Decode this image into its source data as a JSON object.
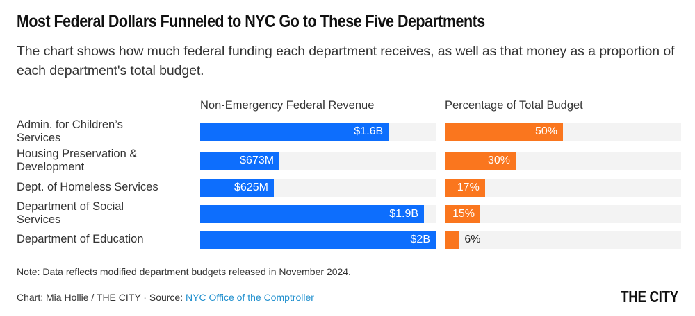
{
  "chart_data": {
    "type": "bar",
    "orientation": "horizontal",
    "title": "Most Federal Dollars Funneled to NYC Go to These Five Departments",
    "subtitle": "The chart shows how much federal funding each department receives, as well as that money as a proportion of each department's total budget.",
    "categories": [
      "Admin. for Children’s Services",
      "Housing Preservation & Development",
      "Dept. of Homeless Services",
      "Department of Social Services",
      "Department of Education"
    ],
    "series": [
      {
        "name": "Non-Emergency Federal Revenue",
        "unit": "USD billions",
        "values": [
          1.6,
          0.673,
          0.625,
          1.9,
          2.0
        ],
        "labels": [
          "$1.6B",
          "$673M",
          "$625M",
          "$1.9B",
          "$2B"
        ],
        "color": "#0d6efd",
        "xlim": [
          0,
          2.0
        ]
      },
      {
        "name": "Percentage of Total Budget",
        "unit": "percent",
        "values": [
          50,
          30,
          17,
          15,
          6
        ],
        "labels": [
          "50%",
          "30%",
          "17%",
          "15%",
          "6%"
        ],
        "color": "#fa761e",
        "xlim": [
          0,
          100
        ]
      }
    ],
    "grid": false,
    "legend": "none",
    "note": "Note: Data reflects modified department budgets released in November 2024.",
    "credit_prefix": "Chart: Mia Hollie / THE CITY · Source: ",
    "source_link": "NYC Office of the Comptroller",
    "logo": "THE CITY",
    "track_color": "#f3f3f3"
  }
}
